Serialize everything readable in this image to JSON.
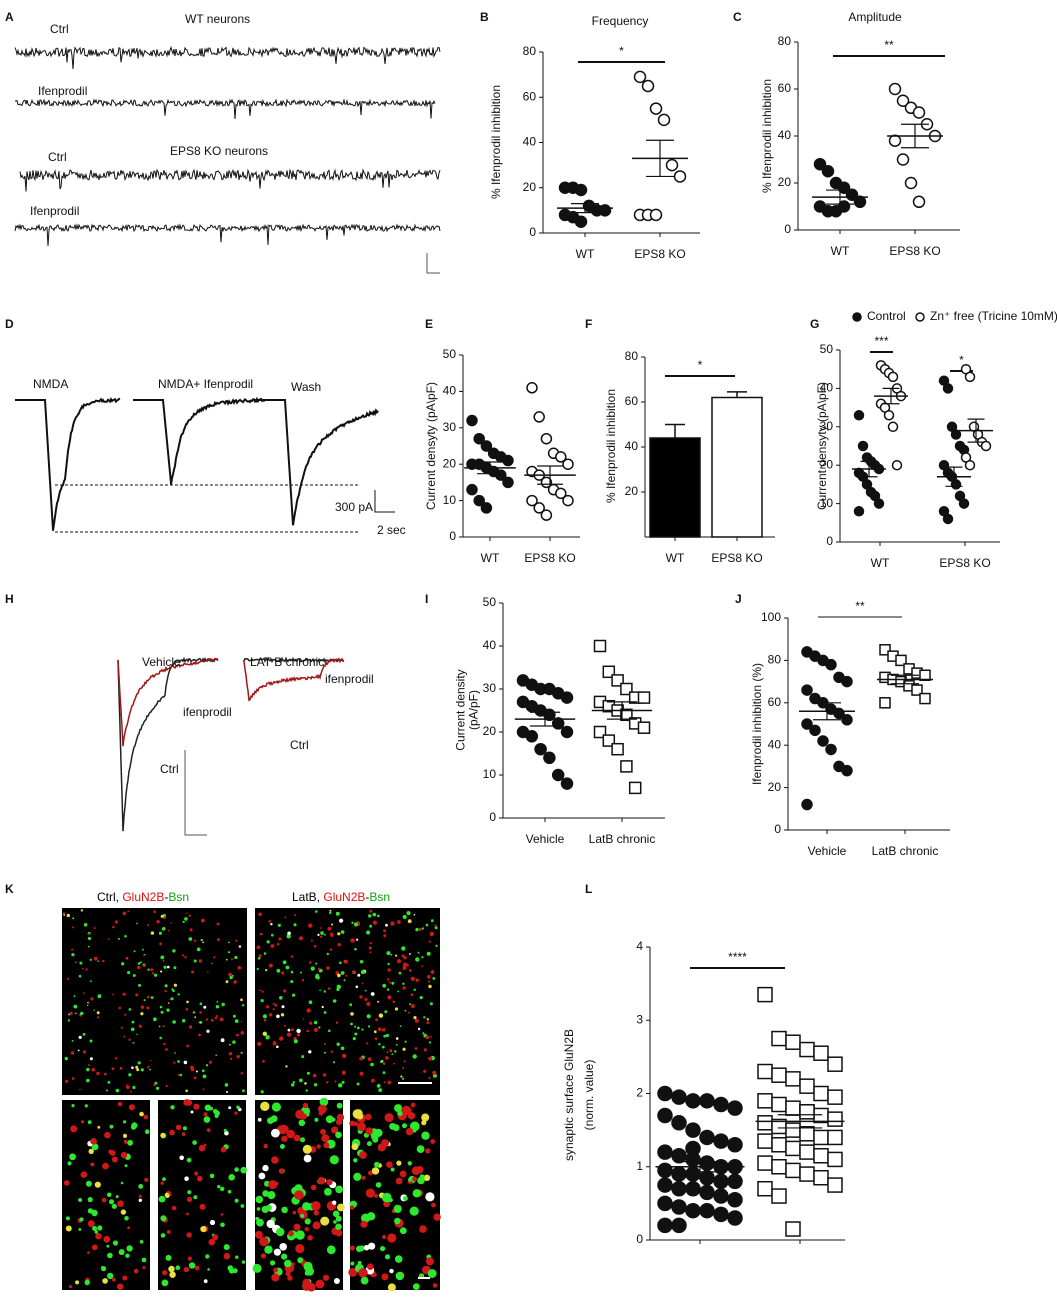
{
  "panel_labels": [
    "A",
    "B",
    "C",
    "D",
    "E",
    "F",
    "G",
    "H",
    "I",
    "J",
    "K",
    "L"
  ],
  "trace_a": {
    "labels": [
      "Ctrl",
      "WT neurons",
      "Ifenprodil",
      "Ctrl",
      "EPS8 KO neurons",
      "Ifenprodil"
    ]
  },
  "trace_d": {
    "labels": [
      "NMDA",
      "NMDA+ Ifenprodil",
      "Wash"
    ],
    "scale_y": "300 pA",
    "scale_x": "2 sec"
  },
  "trace_h": {
    "labels": [
      "Vehicle",
      "LAT B chronic",
      "ifenprodil",
      "Ctrl",
      "ifenprodil",
      "Ctrl"
    ]
  },
  "images_k": {
    "titles": [
      [
        "Ctrl, ",
        "GluN2B",
        "-",
        "Bsn"
      ],
      [
        "LatB, ",
        "GluN2B",
        "-",
        "Bsn"
      ]
    ],
    "part_colors": [
      "#000000",
      "#e01010",
      "#000000",
      "#10a010"
    ]
  },
  "chart_data": [
    {
      "type": "dot",
      "title": "Frequency",
      "ylabel": "% Ifenprodil inhibition",
      "categories": [
        "WT",
        "EPS8 KO"
      ],
      "ylim": [
        0,
        80
      ],
      "yticks": [
        0,
        20,
        40,
        60,
        80
      ],
      "significance": [
        "*"
      ],
      "series": [
        {
          "groups": [
            {
              "marker": "circle-filled",
              "values": [
                20,
                20,
                19,
                12,
                10,
                10,
                8,
                7,
                5
              ],
              "mean": 11,
              "sem": 2
            },
            {
              "marker": "circle-open",
              "values": [
                69,
                65,
                55,
                50,
                30,
                25,
                8,
                8,
                8
              ],
              "mean": 33,
              "sem": 8
            }
          ]
        }
      ]
    },
    {
      "type": "dot",
      "title": "Amplitude",
      "ylabel": "% Ifenprodil inhibition",
      "categories": [
        "WT",
        "EPS8 KO"
      ],
      "ylim": [
        0,
        80
      ],
      "yticks": [
        0,
        20,
        40,
        60,
        80
      ],
      "significance": [
        "**"
      ],
      "series": [
        {
          "groups": [
            {
              "marker": "circle-filled",
              "values": [
                28,
                25,
                20,
                18,
                15,
                12,
                10,
                8,
                8,
                10
              ],
              "mean": 14,
              "sem": 3
            },
            {
              "marker": "circle-open",
              "values": [
                60,
                55,
                52,
                50,
                45,
                40,
                38,
                30,
                20,
                12
              ],
              "mean": 40,
              "sem": 5
            }
          ]
        }
      ]
    },
    {
      "type": "dot",
      "ylabel": "Current densyty (pA\\pF)",
      "categories": [
        "WT",
        "EPS8 KO"
      ],
      "ylim": [
        0,
        50
      ],
      "yticks": [
        0,
        10,
        20,
        30,
        40,
        50
      ],
      "significance": [],
      "series": [
        {
          "groups": [
            {
              "marker": "circle-filled",
              "values": [
                32,
                27,
                25,
                23,
                22,
                21,
                20,
                20,
                19,
                18,
                17,
                15,
                13,
                10,
                8
              ],
              "mean": 19,
              "sem": 1.6
            },
            {
              "marker": "circle-open",
              "values": [
                41,
                33,
                27,
                23,
                22,
                20,
                18,
                17,
                15,
                13,
                12,
                10,
                10,
                8,
                6
              ],
              "mean": 17,
              "sem": 2.5
            }
          ]
        }
      ]
    },
    {
      "type": "bar",
      "ylabel": "% Ifenprodil inhibition",
      "categories": [
        "WT",
        "EPS8 KO"
      ],
      "ylim": [
        0,
        80
      ],
      "yticks": [
        20,
        40,
        60,
        80
      ],
      "significance": [
        "*"
      ],
      "values": [
        44,
        62
      ],
      "errors": [
        6,
        2.5
      ],
      "colors": [
        "#000000",
        "#ffffff"
      ]
    },
    {
      "type": "dot",
      "ylabel": "Current densyty (pA\\pF)",
      "categories": [
        "WT",
        "EPS8 KO"
      ],
      "ylim": [
        0,
        50
      ],
      "yticks": [
        0,
        10,
        20,
        30,
        40,
        50
      ],
      "significance": [
        "***",
        "*"
      ],
      "series": [
        {
          "name": "Control",
          "marker": "circle-filled",
          "groups": [
            {
              "marker": "circle-filled",
              "values": [
                33,
                25,
                22,
                21,
                20,
                19,
                18,
                17,
                15,
                13,
                12,
                10,
                8
              ],
              "mean": 19,
              "sem": 2
            },
            {
              "marker": "circle-filled",
              "values": [
                42,
                40,
                30,
                28,
                25,
                24,
                20,
                18,
                17,
                15,
                12,
                10,
                8,
                6
              ],
              "mean": 17,
              "sem": 2.5
            }
          ]
        },
        {
          "name": "Zn⁺ free (Tricine 10mM)",
          "marker": "circle-open",
          "groups": [
            {
              "marker": "circle-open",
              "values": [
                46,
                45,
                44,
                43,
                40,
                38,
                36,
                35,
                33,
                30,
                20
              ],
              "mean": 38,
              "sem": 2
            },
            {
              "marker": "circle-open",
              "values": [
                45,
                43,
                30,
                28,
                26,
                25,
                22,
                20
              ],
              "mean": 29,
              "sem": 3
            }
          ]
        }
      ]
    },
    {
      "type": "dot",
      "ylabel": [
        "Current density",
        "(pA/pF)"
      ],
      "categories": [
        "Vehicle",
        "LatB chronic"
      ],
      "ylim": [
        0,
        50
      ],
      "yticks": [
        0,
        10,
        20,
        30,
        40,
        50
      ],
      "significance": [],
      "series": [
        {
          "groups": [
            {
              "marker": "circle-filled",
              "values": [
                32,
                31,
                30,
                30,
                29,
                28,
                27,
                26,
                25,
                24,
                22,
                20,
                20,
                19,
                16,
                14,
                10,
                8
              ],
              "mean": 23,
              "sem": 1.6
            },
            {
              "marker": "square-open",
              "values": [
                40,
                34,
                32,
                30,
                28,
                28,
                27,
                26,
                25,
                24,
                22,
                21,
                20,
                18,
                16,
                12,
                7
              ],
              "mean": 25,
              "sem": 2
            }
          ]
        }
      ]
    },
    {
      "type": "dot",
      "ylabel": "Ifenprodil inhibition (%)",
      "categories": [
        "Vehicle",
        "LatB chronic"
      ],
      "ylim": [
        0,
        100
      ],
      "yticks": [
        0,
        20,
        40,
        60,
        80,
        100
      ],
      "significance": [
        "**"
      ],
      "series": [
        {
          "groups": [
            {
              "marker": "circle-filled",
              "values": [
                84,
                82,
                80,
                78,
                72,
                70,
                66,
                62,
                60,
                57,
                55,
                52,
                50,
                47,
                42,
                38,
                30,
                28,
                12
              ],
              "mean": 56,
              "sem": 4
            },
            {
              "marker": "square-open",
              "values": [
                85,
                82,
                80,
                76,
                74,
                73,
                72,
                71,
                70,
                68,
                66,
                62,
                60
              ],
              "mean": 71,
              "sem": 2
            }
          ]
        }
      ]
    },
    {
      "type": "dot",
      "ylabel": [
        "synaptic surface GluN2B",
        "(norm. value)"
      ],
      "categories": [
        null,
        null
      ],
      "ylim": [
        0,
        4
      ],
      "yticks": [
        0,
        1,
        2,
        3,
        4
      ],
      "significance": [
        "****"
      ],
      "series": [
        {
          "groups": [
            {
              "marker": "circle-filled",
              "values": [
                2.0,
                1.95,
                1.9,
                1.9,
                1.85,
                1.8,
                1.7,
                1.6,
                1.5,
                1.4,
                1.35,
                1.3,
                1.2,
                1.15,
                1.1,
                1.05,
                1.0,
                1.0,
                0.95,
                0.9,
                0.9,
                0.85,
                0.8,
                0.8,
                0.75,
                0.7,
                0.7,
                0.65,
                0.6,
                0.55,
                0.5,
                0.45,
                0.4,
                0.4,
                0.35,
                0.3,
                0.2,
                0.2,
                1.25,
                1.05
              ],
              "mean": 1.0,
              "sem": 0.07
            },
            {
              "marker": "square-open",
              "values": [
                3.35,
                2.75,
                2.7,
                2.6,
                2.55,
                2.4,
                2.3,
                2.25,
                2.2,
                2.1,
                2.0,
                1.95,
                1.9,
                1.85,
                1.8,
                1.75,
                1.7,
                1.65,
                1.6,
                1.55,
                1.5,
                1.45,
                1.4,
                1.4,
                1.35,
                1.3,
                1.25,
                1.2,
                1.15,
                1.1,
                1.05,
                1.0,
                0.95,
                0.9,
                0.85,
                0.75,
                0.7,
                0.6,
                0.15,
                1.75
              ],
              "mean": 1.62,
              "sem": 0.09
            }
          ]
        }
      ]
    }
  ]
}
